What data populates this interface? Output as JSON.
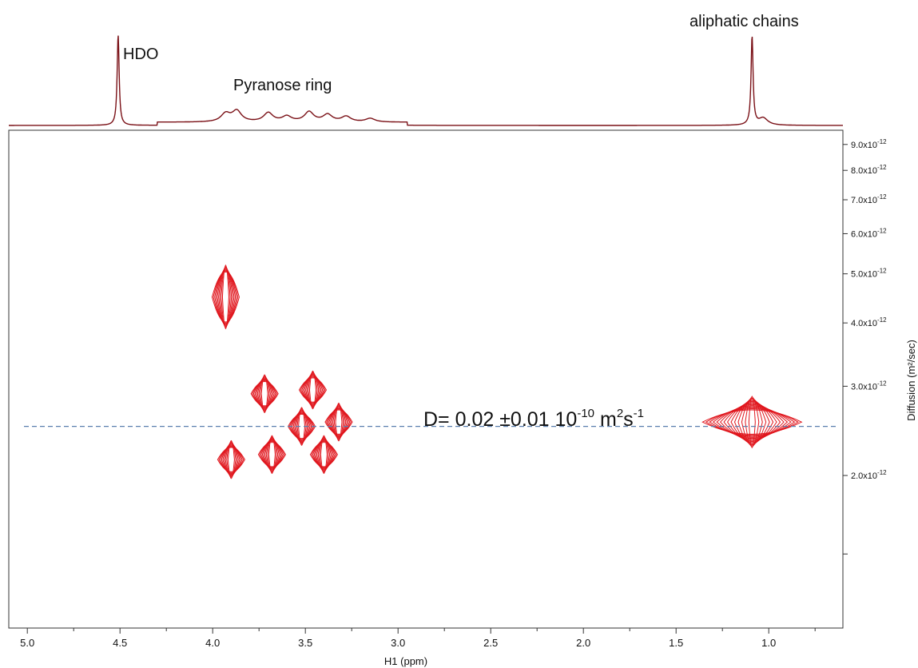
{
  "chart_data": {
    "type": "contour",
    "subtype": "2D DOSY NMR",
    "xlabel": "H1 (ppm)",
    "ylabel": "Diffusion (m²/sec)",
    "x_axis": {
      "reversed": true,
      "range": [
        5.1,
        0.6
      ],
      "ticks": [
        5.0,
        4.5,
        4.0,
        3.5,
        3.0,
        2.5,
        2.0,
        1.5,
        1.0
      ]
    },
    "y_axis": {
      "scale": "log",
      "range": [
        1e-12,
        9.6e-12
      ],
      "ticks": [
        {
          "value": 9e-12,
          "mantissa": "9.0x10",
          "exp": "-12"
        },
        {
          "value": 8e-12,
          "mantissa": "8.0x10",
          "exp": "-12"
        },
        {
          "value": 7e-12,
          "mantissa": "7.0x10",
          "exp": "-12"
        },
        {
          "value": 6e-12,
          "mantissa": "6.0x10",
          "exp": "-12"
        },
        {
          "value": 5e-12,
          "mantissa": "5.0x10",
          "exp": "-12"
        },
        {
          "value": 4e-12,
          "mantissa": "4.0x10",
          "exp": "-12"
        },
        {
          "value": 3e-12,
          "mantissa": "3.0x10",
          "exp": "-12"
        },
        {
          "value": 2e-12,
          "mantissa": "2.0x10",
          "exp": "-12"
        },
        {
          "value": 1.4e-12,
          "mantissa": "",
          "exp": ""
        }
      ]
    },
    "top_spectrum": {
      "peaks": [
        {
          "ppm": 4.51,
          "height": 1.0
        },
        {
          "ppm": 3.93,
          "height": 0.09
        },
        {
          "ppm": 3.87,
          "height": 0.12
        },
        {
          "ppm": 3.7,
          "height": 0.1
        },
        {
          "ppm": 3.6,
          "height": 0.06
        },
        {
          "ppm": 3.48,
          "height": 0.11
        },
        {
          "ppm": 3.38,
          "height": 0.08
        },
        {
          "ppm": 3.28,
          "height": 0.06
        },
        {
          "ppm": 3.15,
          "height": 0.04
        },
        {
          "ppm": 1.09,
          "height": 0.98
        },
        {
          "ppm": 1.03,
          "height": 0.08
        }
      ],
      "annotations": [
        "HDO",
        "Pyranose ring",
        "aliphatic chains"
      ]
    },
    "contour_peaks": [
      {
        "ppm": 3.93,
        "D": 4.5e-12
      },
      {
        "ppm": 3.72,
        "D": 2.9e-12
      },
      {
        "ppm": 3.46,
        "D": 2.95e-12
      },
      {
        "ppm": 3.52,
        "D": 2.5e-12
      },
      {
        "ppm": 3.32,
        "D": 2.55e-12
      },
      {
        "ppm": 3.9,
        "D": 2.15e-12
      },
      {
        "ppm": 3.68,
        "D": 2.2e-12
      },
      {
        "ppm": 3.4,
        "D": 2.2e-12
      },
      {
        "ppm": 1.09,
        "D": 2.55e-12
      }
    ],
    "reference_line": {
      "D": 2.5e-12,
      "style": "dashed"
    },
    "annotation": {
      "prefix": "D= 0.02 ±0.01 10",
      "exp": "-10",
      "mid": " m",
      "sup2": "2",
      "tail": "s",
      "sup3": "-1"
    },
    "colors": {
      "contour": "#e0161d",
      "spectrum": "#7a1016",
      "dashed_line": "#5b7fae",
      "axes": "#333333"
    }
  }
}
